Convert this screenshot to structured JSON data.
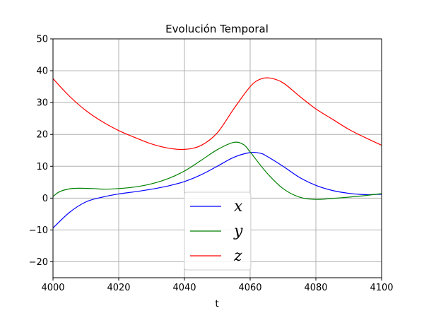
{
  "chart_data": {
    "type": "line",
    "title": "Evolución Temporal",
    "xlabel": "t",
    "ylabel": "",
    "xlim": [
      4000,
      4100
    ],
    "ylim": [
      -25,
      50
    ],
    "xticks": [
      4000,
      4020,
      4040,
      4060,
      4080,
      4100
    ],
    "yticks": [
      -20,
      -10,
      0,
      10,
      20,
      30,
      40,
      50
    ],
    "xtick_labels": [
      "4000",
      "4020",
      "4040",
      "4060",
      "4080",
      "4100"
    ],
    "ytick_labels": [
      "−20",
      "−10",
      "0",
      "10",
      "20",
      "30",
      "40",
      "50"
    ],
    "grid": true,
    "legend_position": "lower-center",
    "series": [
      {
        "name": "x",
        "color": "#0000ff",
        "points": [
          [
            4000,
            -9.4
          ],
          [
            4005,
            -4.5
          ],
          [
            4010,
            -1.2
          ],
          [
            4015,
            0.3
          ],
          [
            4020,
            1.3
          ],
          [
            4025,
            2.0
          ],
          [
            4030,
            2.8
          ],
          [
            4035,
            3.8
          ],
          [
            4040,
            5.2
          ],
          [
            4045,
            7.3
          ],
          [
            4050,
            10.0
          ],
          [
            4055,
            12.8
          ],
          [
            4060,
            14.3
          ],
          [
            4063,
            14.1
          ],
          [
            4065,
            13.2
          ],
          [
            4070,
            10.0
          ],
          [
            4075,
            6.5
          ],
          [
            4080,
            4.0
          ],
          [
            4085,
            2.4
          ],
          [
            4090,
            1.5
          ],
          [
            4095,
            1.1
          ],
          [
            4100,
            1.2
          ]
        ]
      },
      {
        "name": "y",
        "color": "#008000",
        "points": [
          [
            4000,
            0.5
          ],
          [
            4002,
            2.0
          ],
          [
            4005,
            2.9
          ],
          [
            4008,
            3.1
          ],
          [
            4012,
            3.0
          ],
          [
            4016,
            2.8
          ],
          [
            4020,
            3.0
          ],
          [
            4025,
            3.5
          ],
          [
            4030,
            4.5
          ],
          [
            4035,
            6.1
          ],
          [
            4040,
            8.5
          ],
          [
            4045,
            11.8
          ],
          [
            4050,
            15.2
          ],
          [
            4055,
            17.5
          ],
          [
            4058,
            16.8
          ],
          [
            4060,
            14.5
          ],
          [
            4065,
            8.0
          ],
          [
            4070,
            3.0
          ],
          [
            4075,
            0.3
          ],
          [
            4080,
            -0.4
          ],
          [
            4085,
            -0.1
          ],
          [
            4090,
            0.3
          ],
          [
            4095,
            0.8
          ],
          [
            4100,
            1.4
          ]
        ]
      },
      {
        "name": "z",
        "color": "#ff0000",
        "points": [
          [
            4000,
            37.5
          ],
          [
            4005,
            32.0
          ],
          [
            4010,
            27.5
          ],
          [
            4015,
            24.0
          ],
          [
            4020,
            21.2
          ],
          [
            4025,
            19.0
          ],
          [
            4030,
            17.0
          ],
          [
            4035,
            15.7
          ],
          [
            4040,
            15.3
          ],
          [
            4045,
            16.5
          ],
          [
            4050,
            20.5
          ],
          [
            4055,
            28.0
          ],
          [
            4060,
            35.0
          ],
          [
            4063,
            37.3
          ],
          [
            4066,
            37.7
          ],
          [
            4070,
            36.2
          ],
          [
            4075,
            32.0
          ],
          [
            4080,
            28.0
          ],
          [
            4085,
            24.8
          ],
          [
            4090,
            21.6
          ],
          [
            4095,
            19.0
          ],
          [
            4100,
            16.6
          ]
        ]
      }
    ]
  }
}
